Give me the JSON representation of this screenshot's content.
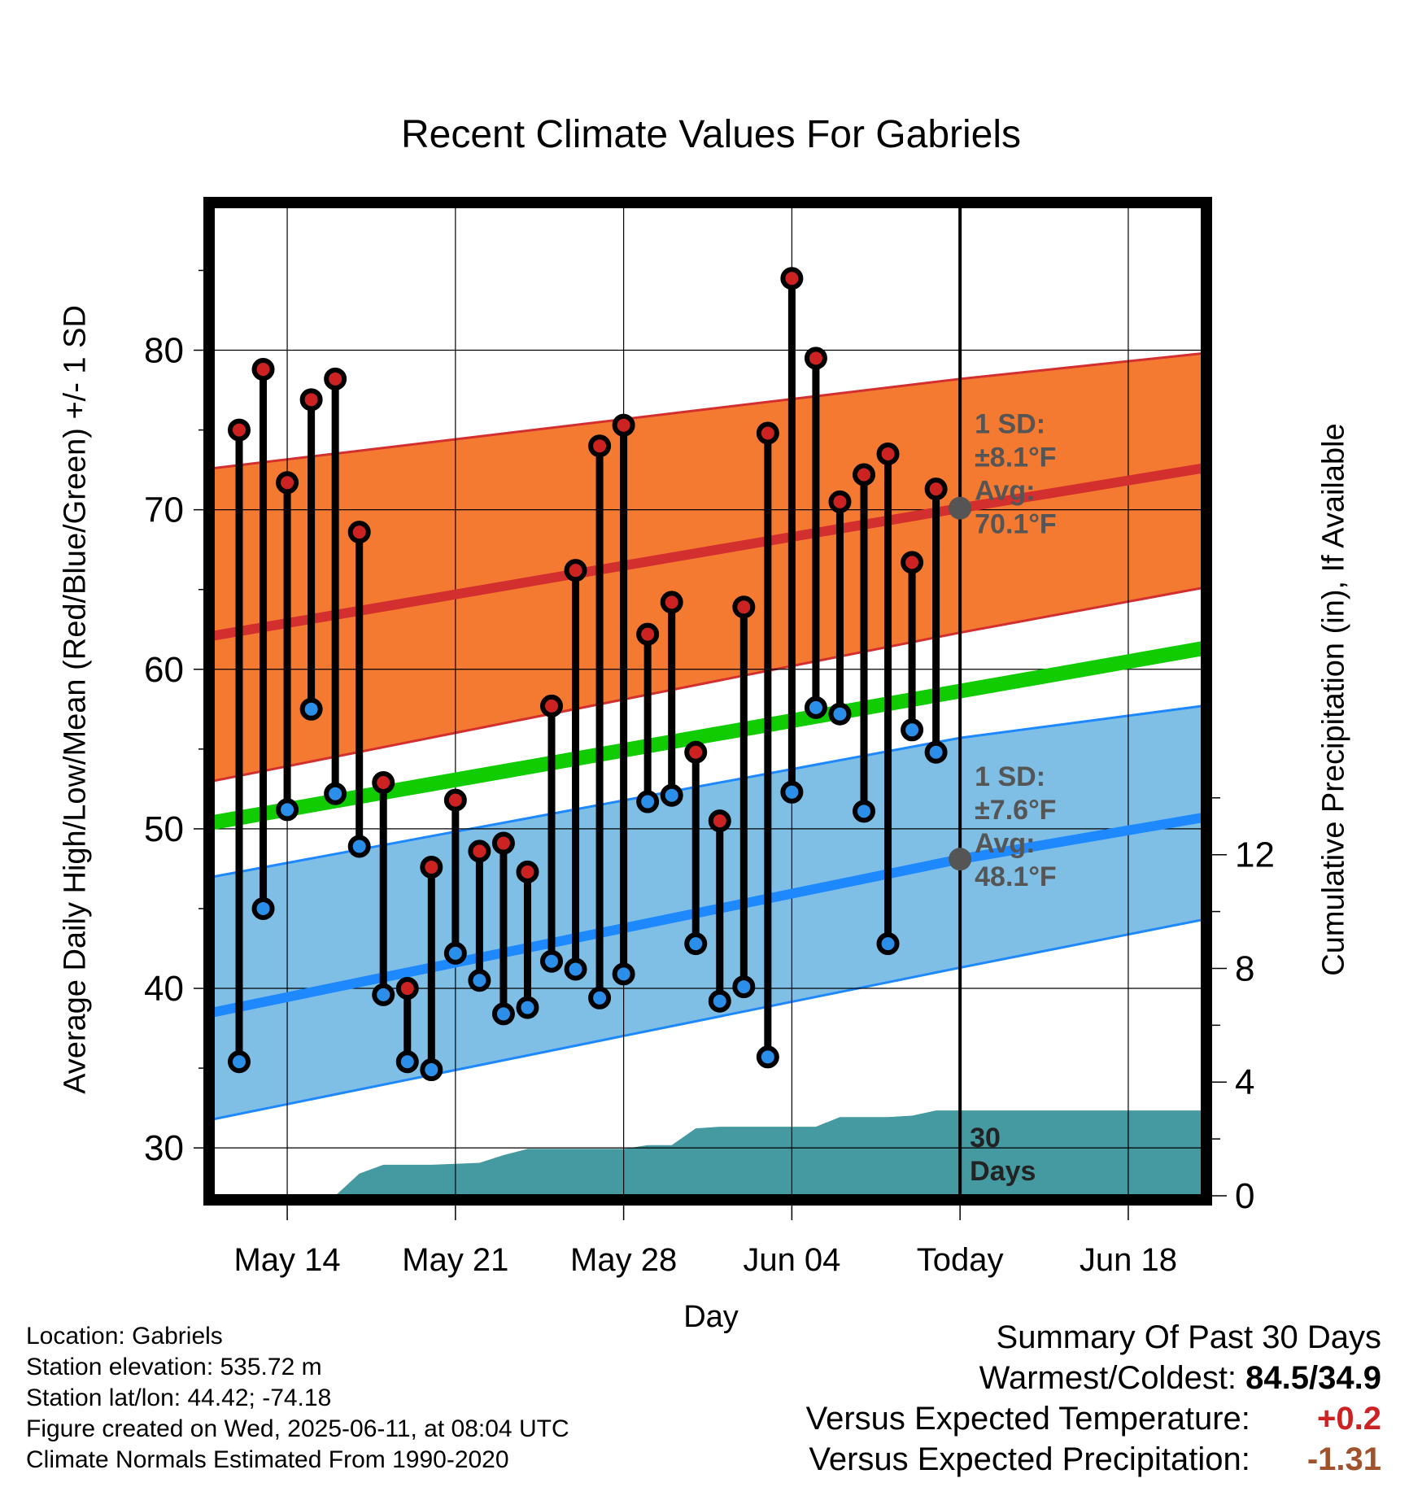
{
  "chart_data": {
    "type": "line",
    "title": "Recent Climate Values For Gabriels",
    "xlabel": "Day",
    "ylabel": "Average Daily High/Low/Mean (Red/Blue/Green) +/- 1 SD",
    "y2label": "Cumulative Precipitation (in), If Available",
    "ylim": [
      27,
      89
    ],
    "y2lim": [
      0,
      34.8
    ],
    "yticks": [
      30,
      40,
      50,
      60,
      70,
      80
    ],
    "y2ticks": [
      0,
      4,
      8,
      12
    ],
    "x_tick_labels": [
      "May 14",
      "May 21",
      "May 28",
      "Jun 04",
      "Today",
      "Jun 18"
    ],
    "x_tick_dates": [
      "2025-05-14",
      "2025-05-21",
      "2025-05-28",
      "2025-06-04",
      "2025-06-11",
      "2025-06-18"
    ],
    "xlim": [
      "2025-05-10 22:00",
      "2025-06-21 02:00"
    ],
    "today": "2025-06-11",
    "days": [
      "2025-05-12",
      "2025-05-13",
      "2025-05-14",
      "2025-05-15",
      "2025-05-16",
      "2025-05-17",
      "2025-05-18",
      "2025-05-19",
      "2025-05-20",
      "2025-05-21",
      "2025-05-22",
      "2025-05-23",
      "2025-05-24",
      "2025-05-25",
      "2025-05-26",
      "2025-05-27",
      "2025-05-28",
      "2025-05-29",
      "2025-05-30",
      "2025-05-31",
      "2025-06-01",
      "2025-06-02",
      "2025-06-03",
      "2025-06-04",
      "2025-06-05",
      "2025-06-06",
      "2025-06-07",
      "2025-06-08",
      "2025-06-09",
      "2025-06-10"
    ],
    "series": [
      {
        "name": "High",
        "color": "#cc2222",
        "values": [
          75.0,
          78.8,
          71.7,
          76.9,
          78.2,
          68.6,
          52.9,
          40.0,
          47.6,
          51.8,
          48.6,
          49.1,
          47.3,
          57.7,
          66.2,
          74.0,
          75.3,
          62.2,
          64.2,
          54.8,
          50.5,
          63.9,
          74.8,
          84.5,
          79.5,
          70.5,
          72.2,
          73.5,
          66.7,
          71.3
        ]
      },
      {
        "name": "Low",
        "color": "#2b8ee8",
        "values": [
          35.4,
          45.0,
          51.2,
          57.5,
          52.2,
          48.9,
          39.6,
          35.4,
          34.9,
          42.2,
          40.5,
          38.4,
          38.8,
          41.7,
          41.2,
          39.4,
          40.9,
          51.7,
          52.1,
          42.8,
          39.2,
          40.1,
          35.7,
          52.3,
          57.6,
          57.2,
          51.1,
          42.8,
          56.2,
          54.8
        ]
      },
      {
        "name": "Normal High",
        "color": "#d32f2f",
        "x": [
          "2025-05-10 22:00",
          "2025-06-11",
          "2025-06-21 02:00"
        ],
        "values": [
          62.1,
          70.1,
          72.6
        ]
      },
      {
        "name": "Normal High +/- 1 SD",
        "color": "#f47a32",
        "x": [
          "2025-05-10 22:00",
          "2025-06-11",
          "2025-06-21 02:00"
        ],
        "upper": [
          72.6,
          78.2,
          79.8
        ],
        "lower": [
          53.0,
          62.3,
          65.1
        ]
      },
      {
        "name": "Normal Mean",
        "color": "#11cc00",
        "x": [
          "2025-05-10 22:00",
          "2025-06-21 02:00"
        ],
        "values": [
          50.4,
          61.3
        ]
      },
      {
        "name": "Normal Low",
        "color": "#1e88ff",
        "x": [
          "2025-05-10 22:00",
          "2025-06-11",
          "2025-06-21 02:00"
        ],
        "values": [
          38.5,
          48.1,
          50.7
        ]
      },
      {
        "name": "Normal Low +/- 1 SD",
        "color": "#7fbfe6",
        "x": [
          "2025-05-10 22:00",
          "2025-06-11",
          "2025-06-21 02:00"
        ],
        "upper": [
          47.0,
          55.7,
          57.7
        ],
        "lower": [
          31.8,
          41.3,
          44.3
        ]
      },
      {
        "name": "Cumulative Precipitation",
        "color": "#4599a0",
        "axis": "y2",
        "x": [
          "2025-05-15",
          "2025-05-16",
          "2025-05-17",
          "2025-05-18",
          "2025-05-20",
          "2025-05-22",
          "2025-05-23",
          "2025-05-24",
          "2025-05-26",
          "2025-05-28",
          "2025-05-29",
          "2025-05-30",
          "2025-05-31",
          "2025-06-01",
          "2025-06-03",
          "2025-06-04",
          "2025-06-05",
          "2025-06-06",
          "2025-06-08",
          "2025-06-09",
          "2025-06-10",
          "2025-06-11",
          "2025-06-21 02:00"
        ],
        "values": [
          0,
          0,
          0.78,
          1.09,
          1.09,
          1.16,
          1.43,
          1.65,
          1.65,
          1.65,
          1.78,
          1.78,
          2.37,
          2.43,
          2.43,
          2.43,
          2.43,
          2.77,
          2.77,
          2.82,
          3.0,
          3.0,
          3.0
        ]
      }
    ],
    "annotations": [
      {
        "text": [
          "1 SD:",
          "±8.1°F",
          "Avg:",
          "70.1°F"
        ],
        "anchor": "high",
        "color": "#555555"
      },
      {
        "text": [
          "1 SD:",
          "±7.6°F",
          "Avg:",
          "48.1°F"
        ],
        "anchor": "low",
        "color": "#555555"
      },
      {
        "text": [
          "30",
          "Days"
        ],
        "anchor": "today",
        "color": "#222222"
      }
    ],
    "grid": true
  },
  "info": {
    "location": "Location: Gabriels",
    "elevation": "Station elevation: 535.72 m",
    "latlon": "Station lat/lon: 44.42; -74.18",
    "created": "Figure created on Wed, 2025-06-11, at 08:04 UTC",
    "normals": "Climate Normals Estimated From 1990-2020"
  },
  "summary": {
    "heading": "Summary Of Past 30 Days",
    "warm_cold_label": "Warmest/Coldest:",
    "warm_cold_value": "84.5/34.9",
    "temp_label": "Versus Expected Temperature:",
    "temp_value": "+0.2",
    "temp_color": "#cc2222",
    "precip_label": "Versus Expected Precipitation:",
    "precip_value": "-1.31",
    "precip_color": "#a0522d"
  }
}
